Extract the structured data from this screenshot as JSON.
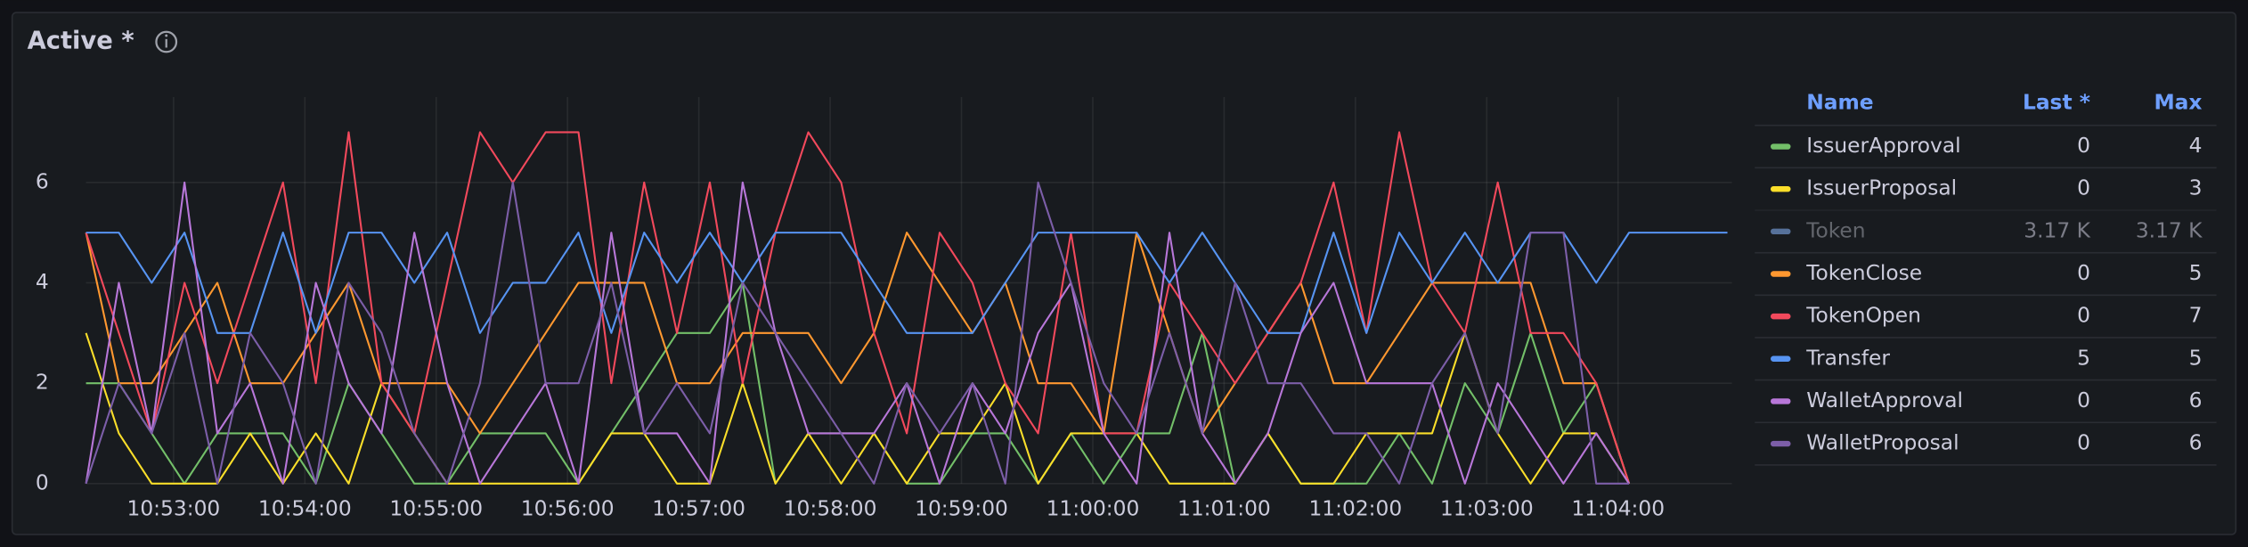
{
  "chart_data": {
    "type": "line",
    "title": "Active *",
    "x": [
      "10:52:20",
      "10:52:35",
      "10:52:50",
      "10:53:05",
      "10:53:20",
      "10:53:35",
      "10:53:50",
      "10:54:05",
      "10:54:20",
      "10:54:35",
      "10:54:50",
      "10:55:05",
      "10:55:20",
      "10:55:35",
      "10:55:50",
      "10:56:05",
      "10:56:20",
      "10:56:35",
      "10:56:50",
      "10:57:05",
      "10:57:20",
      "10:57:35",
      "10:57:50",
      "10:58:05",
      "10:58:20",
      "10:58:35",
      "10:58:50",
      "10:59:05",
      "10:59:20",
      "10:59:35",
      "10:59:50",
      "11:00:05",
      "11:00:20",
      "11:00:35",
      "11:00:50",
      "11:01:05",
      "11:01:20",
      "11:01:35",
      "11:01:50",
      "11:02:05",
      "11:02:20",
      "11:02:35",
      "11:02:50",
      "11:03:05",
      "11:03:20",
      "11:03:35",
      "11:03:50",
      "11:04:05",
      "11:04:20",
      "11:04:35",
      "11:04:50"
    ],
    "xlim": [
      "10:52:20",
      "11:04:52"
    ],
    "xticks": [
      "10:53:00",
      "10:54:00",
      "10:55:00",
      "10:56:00",
      "10:57:00",
      "10:58:00",
      "10:59:00",
      "11:00:00",
      "11:01:00",
      "11:02:00",
      "11:03:00",
      "11:04:00"
    ],
    "ylim": [
      0,
      7.7
    ],
    "yticks": [
      0,
      2,
      4,
      6
    ],
    "grid": true,
    "legend_columns": [
      "Name",
      "Last *",
      "Max"
    ],
    "series": [
      {
        "name": "IssuerApproval",
        "color": "#73bf69",
        "last": 0,
        "max": 4,
        "values": [
          2,
          2,
          1,
          0,
          1,
          1,
          1,
          0,
          2,
          1,
          0,
          0,
          1,
          1,
          1,
          0,
          1,
          2,
          3,
          3,
          4,
          0,
          1,
          1,
          1,
          0,
          0,
          1,
          1,
          0,
          1,
          0,
          1,
          1,
          3,
          0,
          1,
          0,
          0,
          0,
          1,
          0,
          2,
          1,
          3,
          1,
          2,
          0,
          null,
          null,
          null
        ]
      },
      {
        "name": "IssuerProposal",
        "color": "#fade2a",
        "last": 0,
        "max": 3,
        "values": [
          3,
          1,
          0,
          0,
          0,
          1,
          0,
          1,
          0,
          2,
          1,
          0,
          0,
          0,
          0,
          0,
          1,
          1,
          0,
          0,
          2,
          0,
          1,
          0,
          1,
          0,
          1,
          1,
          2,
          0,
          1,
          1,
          1,
          0,
          0,
          0,
          1,
          0,
          0,
          1,
          1,
          1,
          3,
          1,
          0,
          1,
          1,
          0,
          null,
          null,
          null
        ]
      },
      {
        "name": "Token",
        "color": "#8ab8ff",
        "hidden": true,
        "last": {
          "value": 3170,
          "label": "3.17 K"
        },
        "max": {
          "value": 3170,
          "label": "3.17 K"
        }
      },
      {
        "name": "TokenClose",
        "color": "#ff9830",
        "last": 0,
        "max": 5,
        "values": [
          5,
          2,
          2,
          3,
          4,
          2,
          2,
          3,
          4,
          2,
          2,
          2,
          1,
          2,
          3,
          4,
          4,
          4,
          2,
          2,
          3,
          3,
          3,
          2,
          3,
          5,
          4,
          3,
          4,
          2,
          2,
          1,
          5,
          3,
          1,
          2,
          3,
          4,
          2,
          2,
          3,
          4,
          4,
          4,
          4,
          2,
          2,
          0,
          null,
          null,
          null
        ]
      },
      {
        "name": "TokenOpen",
        "color": "#f2495c",
        "last": 0,
        "max": 7,
        "values": [
          5,
          3,
          1,
          4,
          2,
          4,
          6,
          2,
          7,
          2,
          1,
          4,
          7,
          6,
          7,
          7,
          2,
          6,
          3,
          6,
          2,
          5,
          7,
          6,
          3,
          1,
          5,
          4,
          2,
          1,
          5,
          1,
          1,
          4,
          3,
          2,
          3,
          4,
          6,
          3,
          7,
          4,
          3,
          6,
          3,
          3,
          2,
          0,
          null,
          null,
          null
        ]
      },
      {
        "name": "Transfer",
        "color": "#5794f2",
        "last": 5,
        "max": 5,
        "values": [
          5,
          5,
          4,
          5,
          3,
          3,
          5,
          3,
          5,
          5,
          4,
          5,
          3,
          4,
          4,
          5,
          3,
          5,
          4,
          5,
          4,
          5,
          5,
          5,
          4,
          3,
          3,
          3,
          4,
          5,
          5,
          5,
          5,
          4,
          5,
          4,
          3,
          3,
          5,
          3,
          5,
          4,
          5,
          4,
          5,
          5,
          4,
          5,
          5,
          5,
          5
        ]
      },
      {
        "name": "WalletApproval",
        "color": "#b877d9",
        "last": 0,
        "max": 6,
        "values": [
          0,
          4,
          1,
          6,
          1,
          2,
          0,
          4,
          2,
          1,
          5,
          2,
          0,
          1,
          2,
          0,
          5,
          1,
          1,
          0,
          6,
          3,
          1,
          1,
          1,
          2,
          0,
          2,
          1,
          3,
          4,
          1,
          0,
          5,
          1,
          0,
          1,
          3,
          4,
          2,
          2,
          2,
          0,
          2,
          1,
          0,
          1,
          0,
          null,
          null,
          null
        ]
      },
      {
        "name": "WalletProposal",
        "color": "#7c5ea8",
        "last": 0,
        "max": 6,
        "values": [
          0,
          2,
          1,
          3,
          0,
          3,
          2,
          0,
          4,
          3,
          1,
          0,
          2,
          6,
          2,
          2,
          4,
          1,
          2,
          1,
          4,
          3,
          2,
          1,
          0,
          2,
          1,
          2,
          0,
          6,
          4,
          2,
          1,
          3,
          1,
          4,
          2,
          2,
          1,
          1,
          0,
          2,
          3,
          1,
          5,
          5,
          0,
          0,
          null,
          null,
          null
        ]
      }
    ]
  }
}
